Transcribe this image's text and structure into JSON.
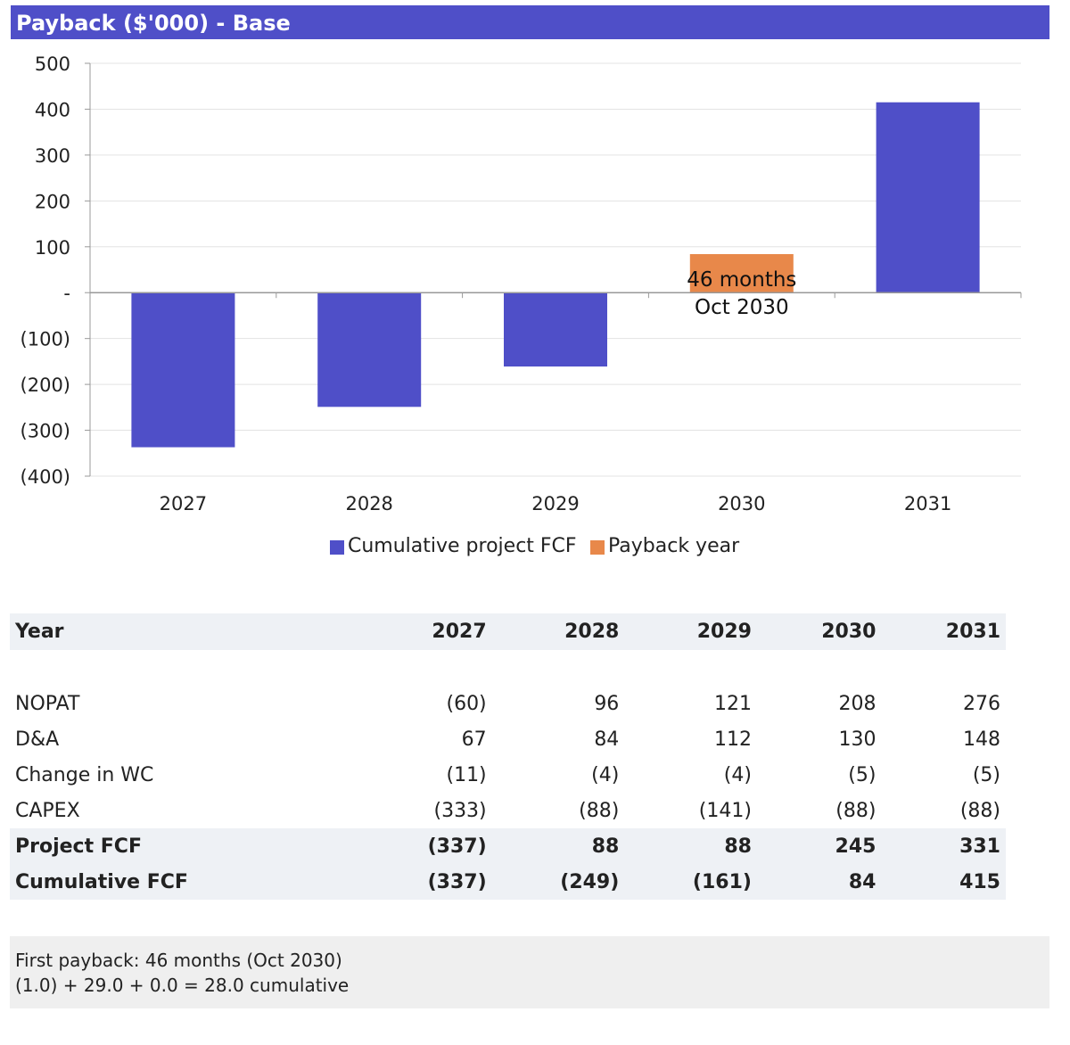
{
  "title": "Payback ($'000) - Base",
  "colors": {
    "accent": "#4f4fc8",
    "payback": "#e8884a",
    "header_bg": "#eef1f5",
    "note_bg": "#efefef"
  },
  "chart_data": {
    "type": "bar",
    "categories": [
      "2027",
      "2028",
      "2029",
      "2030",
      "2031"
    ],
    "series": [
      {
        "name": "Cumulative project FCF",
        "values": [
          -337,
          -249,
          -161,
          0,
          415
        ]
      },
      {
        "name": "Payback year",
        "values": [
          0,
          0,
          0,
          84,
          0
        ]
      }
    ],
    "ylim": [
      -400,
      500
    ],
    "y_ticks": [
      500,
      400,
      300,
      200,
      100,
      0,
      -100,
      -200,
      -300,
      -400
    ],
    "y_tick_labels": [
      "500",
      "400",
      "300",
      "200",
      "100",
      "-",
      "(100)",
      "(200)",
      "(300)",
      "(400)"
    ],
    "annotation": {
      "category": "2030",
      "line1": "46 months",
      "line2": "Oct 2030"
    },
    "grid": true,
    "legend_position": "bottom"
  },
  "table": {
    "header": [
      "Year",
      "2027",
      "2028",
      "2029",
      "2030",
      "2031"
    ],
    "rows": [
      {
        "label": "NOPAT",
        "values": [
          "(60)",
          "96",
          "121",
          "208",
          "276"
        ]
      },
      {
        "label": "D&A",
        "values": [
          "67",
          "84",
          "112",
          "130",
          "148"
        ]
      },
      {
        "label": "Change in WC",
        "values": [
          "(11)",
          "(4)",
          "(4)",
          "(5)",
          "(5)"
        ]
      },
      {
        "label": "CAPEX",
        "values": [
          "(333)",
          "(88)",
          "(141)",
          "(88)",
          "(88)"
        ]
      },
      {
        "label": "Project FCF",
        "values": [
          "(337)",
          "88",
          "88",
          "245",
          "331"
        ]
      },
      {
        "label": "Cumulative FCF",
        "values": [
          "(337)",
          "(249)",
          "(161)",
          "84",
          "415"
        ]
      }
    ]
  },
  "note": {
    "line1": "First payback: 46 months (Oct 2030)",
    "line2": "(1.0) + 29.0 + 0.0 = 28.0 cumulative"
  }
}
